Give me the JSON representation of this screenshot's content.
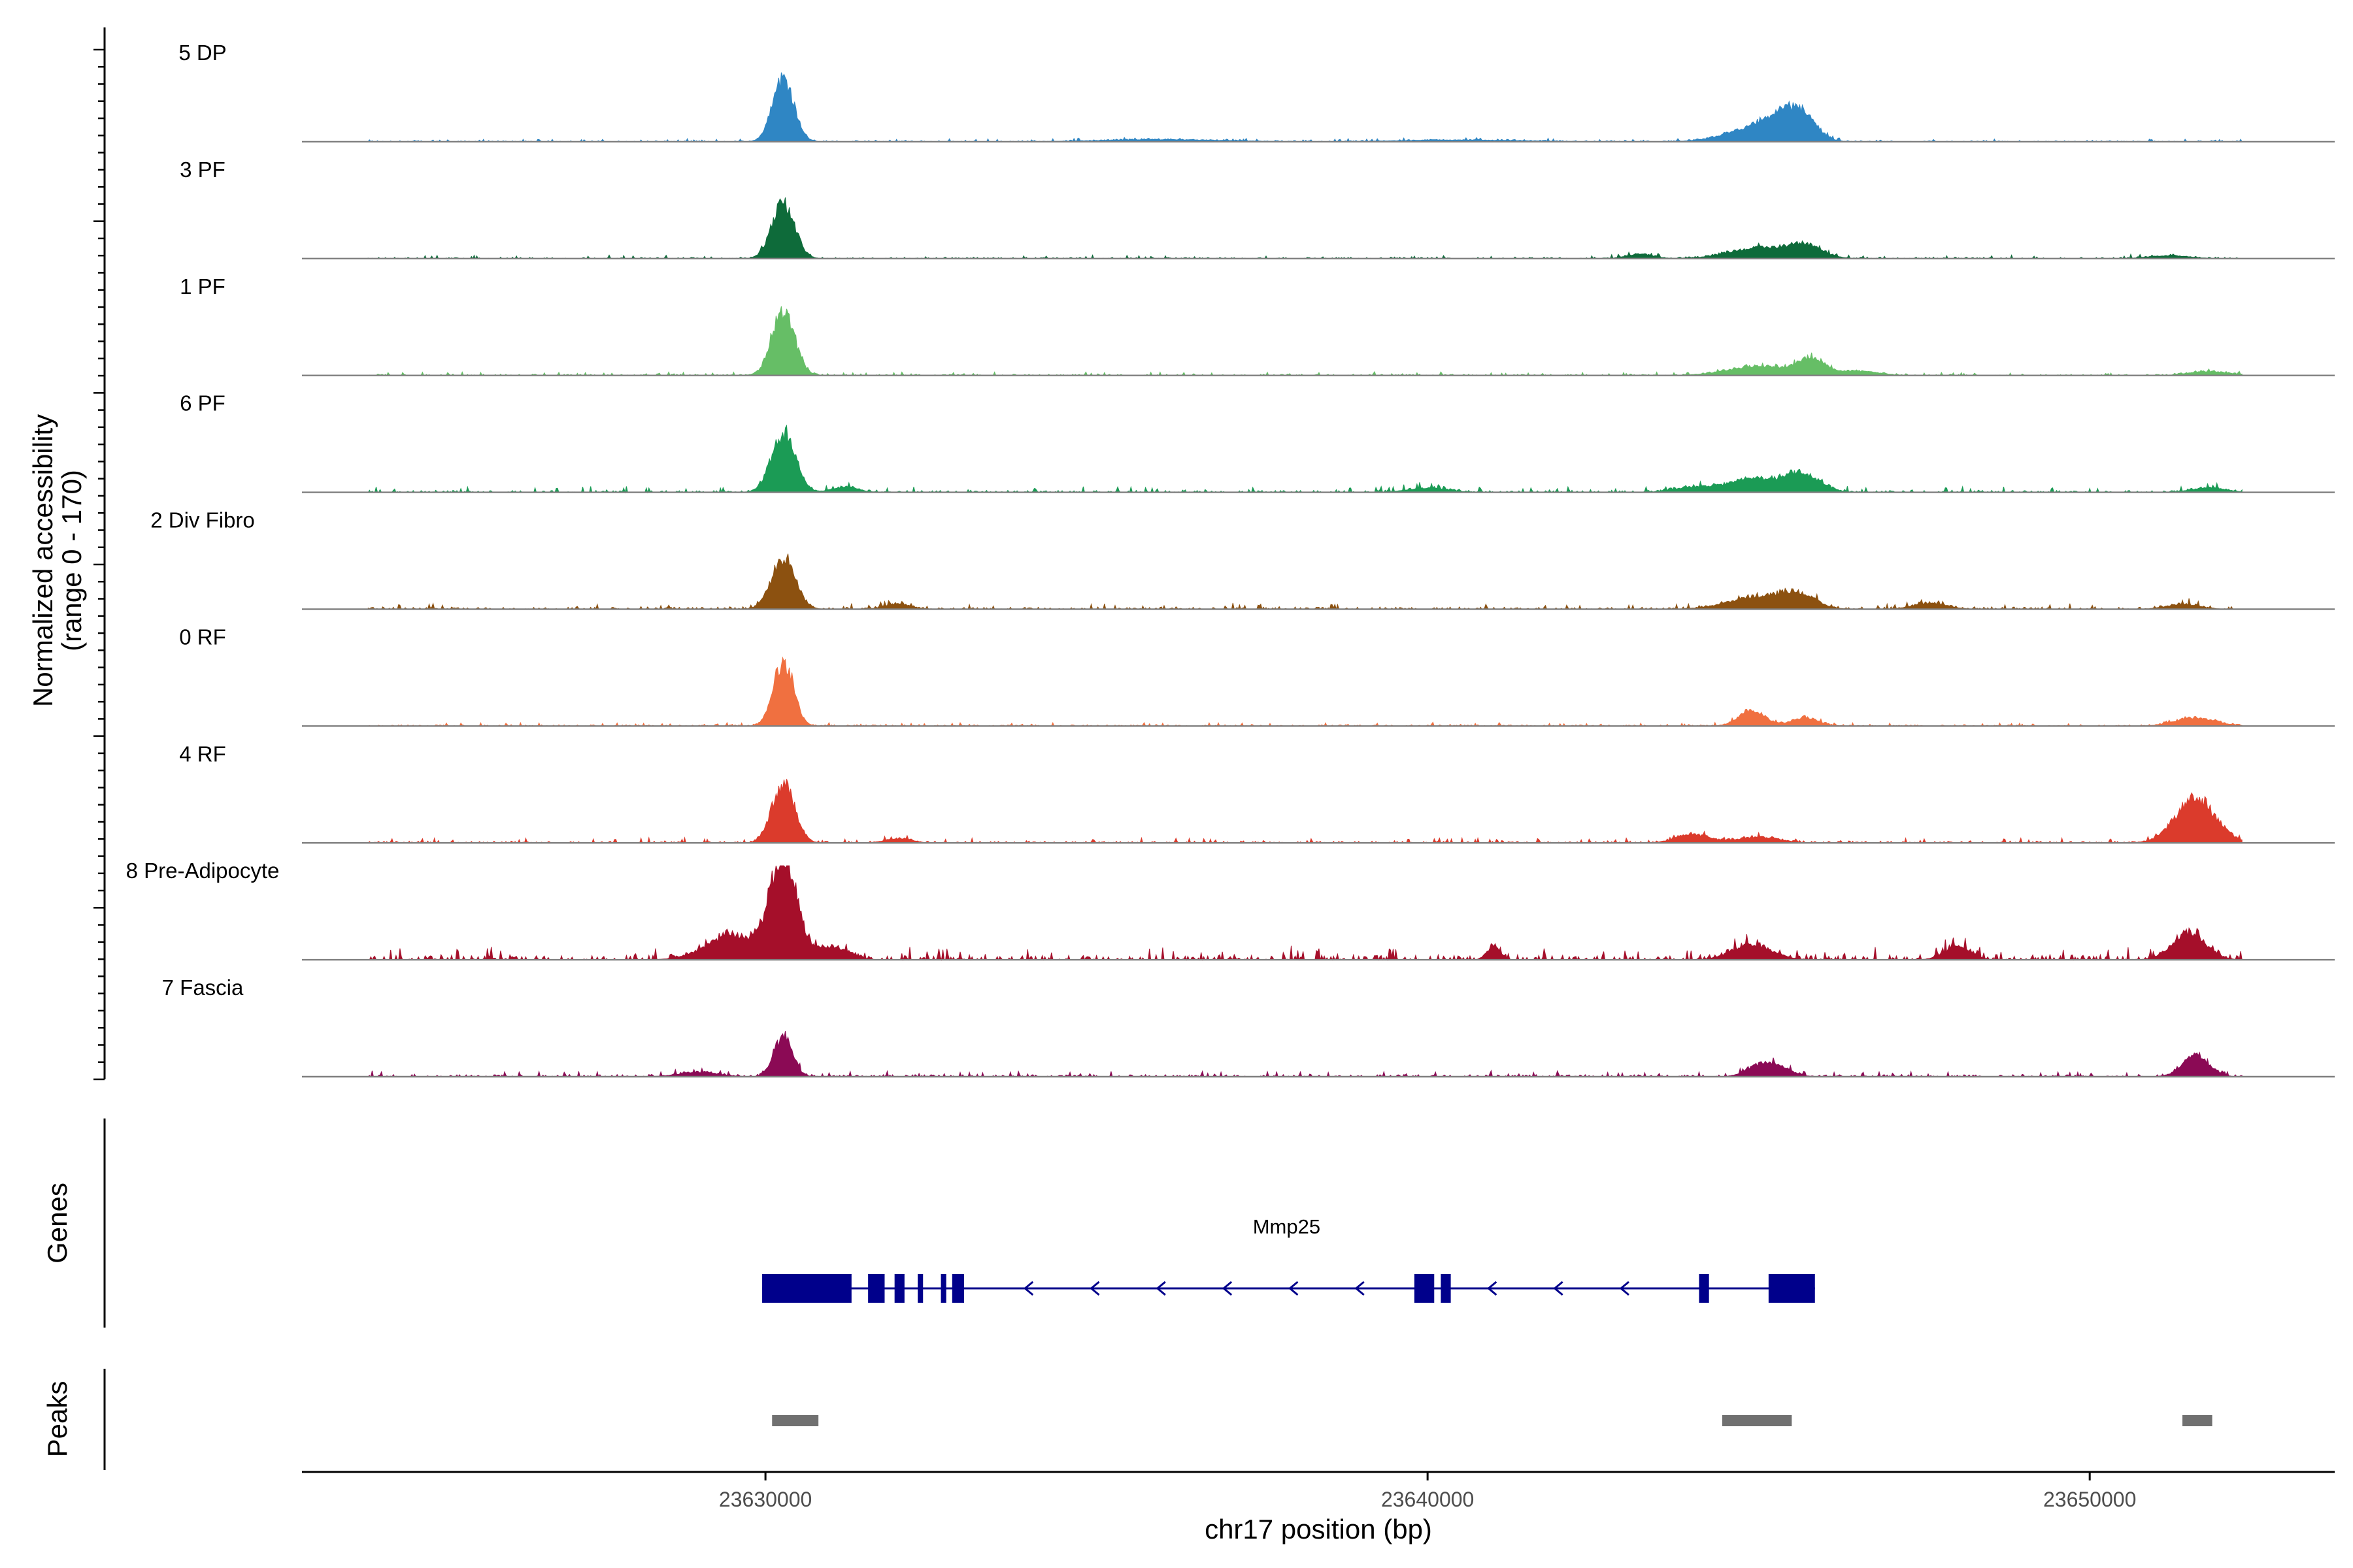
{
  "chart_data": {
    "type": "coverage-track",
    "chromosome": "chr17",
    "xlabel": "chr17 position (bp)",
    "ylabel_line1": "Normalized accessibility",
    "ylabel_line2": "(range 0 - 170)",
    "y_range": [
      0,
      170
    ],
    "xlim": [
      23623000,
      23653700
    ],
    "x_ticks": [
      {
        "value": 23630000,
        "label": "23630000"
      },
      {
        "value": 23640000,
        "label": "23640000"
      },
      {
        "value": 23650000,
        "label": "23650000"
      }
    ],
    "data_extent": [
      23624000,
      23652300
    ],
    "tracks": [
      {
        "name": "5 DP",
        "color": "#2F86C4",
        "peaks": [
          [
            23630270,
            150,
            160
          ],
          [
            23645000,
            35,
            450
          ],
          [
            23645400,
            42,
            250
          ],
          [
            23645700,
            40,
            200
          ],
          [
            23636000,
            5,
            900
          ],
          [
            23640500,
            4,
            900
          ]
        ],
        "noise": 4
      },
      {
        "name": "3 PF",
        "color": "#0E6B3A",
        "peaks": [
          [
            23630270,
            130,
            170
          ],
          [
            23645000,
            25,
            450
          ],
          [
            23645700,
            28,
            250
          ],
          [
            23643200,
            10,
            200
          ],
          [
            23651200,
            7,
            300
          ]
        ],
        "noise": 5
      },
      {
        "name": "1 PF",
        "color": "#66BE66",
        "peaks": [
          [
            23630270,
            150,
            170
          ],
          [
            23645000,
            22,
            450
          ],
          [
            23645800,
            38,
            200
          ],
          [
            23646500,
            10,
            300
          ],
          [
            23651800,
            9,
            300
          ]
        ],
        "noise": 5
      },
      {
        "name": "6 PF",
        "color": "#1B9B55",
        "peaks": [
          [
            23630270,
            140,
            180
          ],
          [
            23645000,
            32,
            450
          ],
          [
            23645700,
            34,
            250
          ],
          [
            23631200,
            12,
            200
          ],
          [
            23644000,
            10,
            300
          ],
          [
            23651800,
            11,
            250
          ],
          [
            23640000,
            10,
            300
          ]
        ],
        "noise": 8
      },
      {
        "name": "2 Div Fibro",
        "color": "#8C5110",
        "peaks": [
          [
            23630270,
            118,
            180
          ],
          [
            23645000,
            28,
            450
          ],
          [
            23645600,
            30,
            250
          ],
          [
            23632000,
            12,
            200
          ],
          [
            23647600,
            14,
            250
          ],
          [
            23651400,
            11,
            250
          ]
        ],
        "noise": 8
      },
      {
        "name": "0 RF",
        "color": "#F07040",
        "peaks": [
          [
            23630270,
            150,
            150
          ],
          [
            23644900,
            35,
            200
          ],
          [
            23645700,
            20,
            200
          ],
          [
            23651600,
            20,
            300
          ]
        ],
        "noise": 5
      },
      {
        "name": "4 RF",
        "color": "#DB3B2C",
        "peaks": [
          [
            23630270,
            140,
            170
          ],
          [
            23651600,
            105,
            300
          ],
          [
            23644000,
            20,
            250
          ],
          [
            23645000,
            14,
            300
          ],
          [
            23632000,
            10,
            200
          ]
        ],
        "noise": 7
      },
      {
        "name": "8 Pre-Adipocyte",
        "color": "#A50F2A",
        "peaks": [
          [
            23630270,
            240,
            200
          ],
          [
            23629500,
            55,
            400
          ],
          [
            23631000,
            30,
            250
          ],
          [
            23651500,
            65,
            250
          ],
          [
            23644900,
            35,
            300
          ],
          [
            23648000,
            30,
            200
          ],
          [
            23641000,
            32,
            100
          ]
        ],
        "noise": 18
      },
      {
        "name": "7 Fascia",
        "color": "#8B0A55",
        "peaks": [
          [
            23630270,
            92,
            140
          ],
          [
            23645000,
            22,
            200
          ],
          [
            23645300,
            20,
            200
          ],
          [
            23651600,
            50,
            200
          ],
          [
            23629000,
            10,
            300
          ]
        ],
        "noise": 8
      }
    ],
    "genes": [
      {
        "name": "Mmp25",
        "strand": "-",
        "start": 23629950,
        "end": 23645850,
        "exons": [
          [
            23629950,
            23631300
          ],
          [
            23631550,
            23631800
          ],
          [
            23631950,
            23632100
          ],
          [
            23632300,
            23632380
          ],
          [
            23632650,
            23632730
          ],
          [
            23632820,
            23633000
          ],
          [
            23639800,
            23640100
          ],
          [
            23640200,
            23640350
          ],
          [
            23644100,
            23644250
          ],
          [
            23645150,
            23645850
          ]
        ],
        "color": "#00008B"
      }
    ],
    "peaks": [
      {
        "start": 23630100,
        "end": 23630800
      },
      {
        "start": 23644450,
        "end": 23645500
      },
      {
        "start": 23651400,
        "end": 23651850
      }
    ],
    "panel_labels": {
      "genes": "Genes",
      "peaks": "Peaks"
    },
    "peak_color": "#707070"
  }
}
